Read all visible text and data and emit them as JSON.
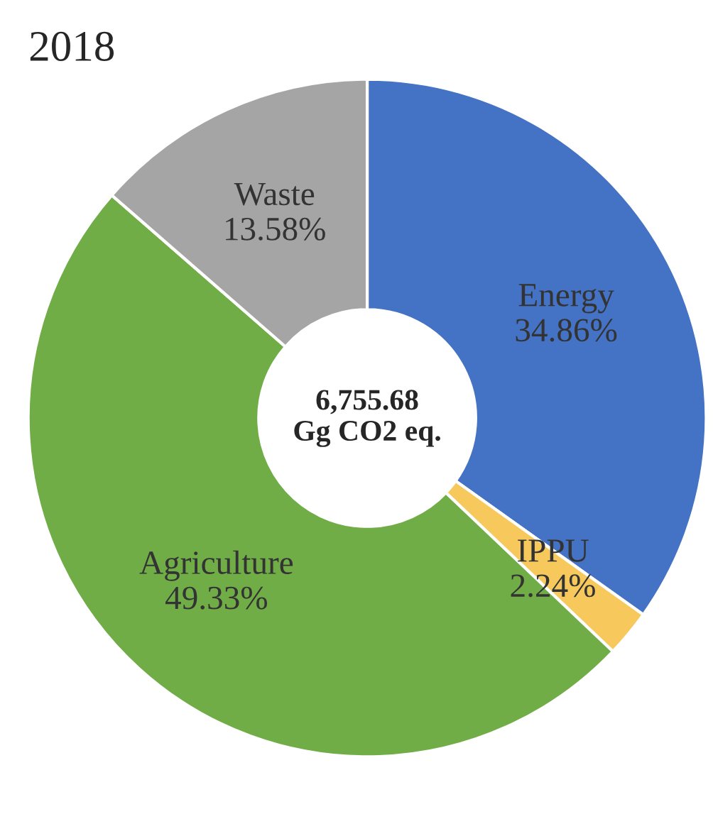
{
  "chart_data": {
    "type": "donut",
    "title": "2018",
    "categories": [
      "Energy",
      "IPPU",
      "Agriculture",
      "Waste"
    ],
    "values": [
      34.86,
      2.24,
      49.33,
      13.58
    ],
    "value_labels": [
      "34.86%",
      "2.24%",
      "49.33%",
      "13.58%"
    ],
    "colors": [
      "#4472c4",
      "#f7c95c",
      "#70ad47",
      "#a5a5a5"
    ],
    "annotations": [
      "6,755.68\nGg CO2 eq."
    ]
  }
}
